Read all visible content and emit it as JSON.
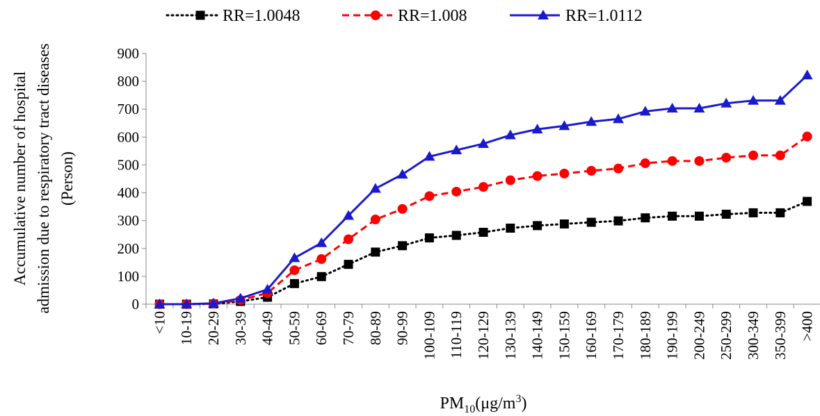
{
  "chart_data": {
    "type": "line",
    "title": "",
    "xlabel": {
      "base": "PM",
      "sub": "10",
      "unit_pre": "(μg/m",
      "unit_sup": "3",
      "unit_post": ")"
    },
    "ylabel_lines": [
      "Accumulative number of hospital",
      "admission due to respiratory tract diseases",
      "(Person)"
    ],
    "ylim": [
      0,
      900
    ],
    "yticks": [
      0,
      100,
      200,
      300,
      400,
      500,
      600,
      700,
      800,
      900
    ],
    "grid": false,
    "legend_position": "top",
    "categories": [
      "<10",
      "10-19",
      "20-29",
      "30-39",
      "40-49",
      "50-59",
      "60-69",
      "70-79",
      "80-89",
      "90-99",
      "100-109",
      "110-119",
      "120-129",
      "130-139",
      "140-149",
      "150-159",
      "160-169",
      "170-179",
      "180-189",
      "190-199",
      "200-249",
      "250-299",
      "300-349",
      "350-399",
      ">400"
    ],
    "series": [
      {
        "name": "RR=1.0048",
        "color": "#000000",
        "marker": "square",
        "line": "dotted",
        "values": [
          0,
          0,
          1,
          10,
          25,
          74,
          99,
          143,
          187,
          210,
          238,
          247,
          258,
          273,
          282,
          288,
          294,
          299,
          310,
          316,
          316,
          323,
          328,
          328,
          369
        ]
      },
      {
        "name": "RR=1.008",
        "color": "#ff0000",
        "marker": "circle",
        "line": "dashed",
        "values": [
          0,
          0,
          2,
          15,
          40,
          122,
          162,
          233,
          304,
          342,
          388,
          404,
          421,
          445,
          460,
          469,
          479,
          487,
          506,
          514,
          514,
          526,
          534,
          534,
          602
        ]
      },
      {
        "name": "RR=1.0112",
        "color": "#1a1acc",
        "marker": "triangle",
        "line": "solid",
        "values": [
          0,
          0,
          3,
          21,
          53,
          166,
          220,
          318,
          415,
          466,
          530,
          553,
          576,
          607,
          628,
          640,
          655,
          665,
          692,
          703,
          703,
          721,
          731,
          731,
          822
        ]
      }
    ]
  }
}
